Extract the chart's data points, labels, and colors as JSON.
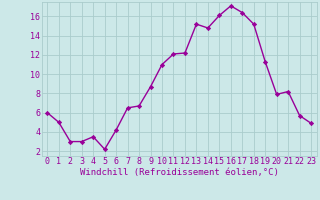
{
  "x": [
    0,
    1,
    2,
    3,
    4,
    5,
    6,
    7,
    8,
    9,
    10,
    11,
    12,
    13,
    14,
    15,
    16,
    17,
    18,
    19,
    20,
    21,
    22,
    23
  ],
  "y": [
    6,
    5,
    3,
    3,
    3.5,
    2.2,
    4.2,
    6.5,
    6.7,
    8.7,
    11,
    12.1,
    12.2,
    15.2,
    14.8,
    16.1,
    17.1,
    16.4,
    15.2,
    11.3,
    7.9,
    8.2,
    5.7,
    4.9
  ],
  "line_color": "#990099",
  "marker": "D",
  "marker_size": 2.2,
  "linewidth": 1.0,
  "bg_color": "#cce8e8",
  "grid_color": "#aacccc",
  "xlabel": "Windchill (Refroidissement éolien,°C)",
  "xlabel_color": "#990099",
  "xlabel_fontsize": 6.5,
  "tick_color": "#990099",
  "tick_fontsize": 6,
  "yticks": [
    2,
    4,
    6,
    8,
    10,
    12,
    14,
    16
  ],
  "ylim": [
    1.5,
    17.5
  ],
  "xlim": [
    -0.5,
    23.5
  ],
  "xticks": [
    0,
    1,
    2,
    3,
    4,
    5,
    6,
    7,
    8,
    9,
    10,
    11,
    12,
    13,
    14,
    15,
    16,
    17,
    18,
    19,
    20,
    21,
    22,
    23
  ]
}
